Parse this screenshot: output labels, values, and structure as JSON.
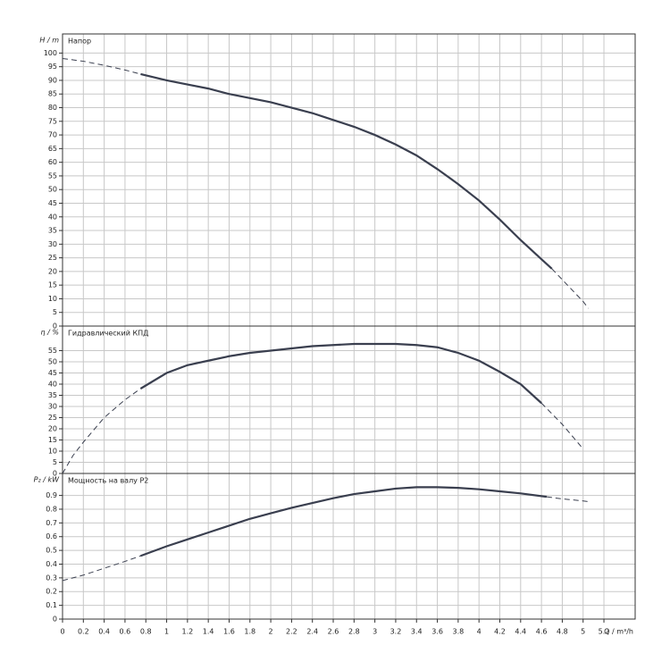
{
  "chart_data": [
    {
      "type": "line",
      "ylabel": "H / m",
      "title": "Напор",
      "xlim": [
        0,
        5.5
      ],
      "ylim": [
        0,
        107
      ],
      "yticks": [
        0,
        5,
        10,
        15,
        20,
        25,
        30,
        35,
        40,
        45,
        50,
        55,
        60,
        65,
        70,
        75,
        80,
        85,
        90,
        95,
        100
      ],
      "grid": true,
      "color": "#3a3f4f",
      "segments": [
        {
          "style": "dashed",
          "x": [
            0,
            0.2,
            0.4,
            0.6,
            0.75
          ],
          "values": [
            98,
            97,
            95.5,
            93.8,
            92.3
          ]
        },
        {
          "style": "solid",
          "x": [
            0.75,
            1.0,
            1.2,
            1.4,
            1.6,
            1.8,
            2.0,
            2.2,
            2.4,
            2.6,
            2.8,
            3.0,
            3.2,
            3.4,
            3.6,
            3.8,
            4.0,
            4.2,
            4.4,
            4.6,
            4.7
          ],
          "values": [
            92.3,
            90,
            88.5,
            87,
            85,
            83.5,
            82,
            80,
            78,
            75.5,
            73,
            70,
            66.5,
            62.5,
            57.5,
            52,
            46,
            39,
            31.5,
            24.5,
            21
          ]
        },
        {
          "style": "dashed",
          "x": [
            4.7,
            4.8,
            5.0,
            5.05
          ],
          "values": [
            21,
            17,
            9,
            6.5
          ]
        }
      ]
    },
    {
      "type": "line",
      "ylabel": "η / %",
      "title": "Гидравлический КПД",
      "xlim": [
        0,
        5.5
      ],
      "ylim": [
        0,
        66
      ],
      "yticks": [
        0,
        5,
        10,
        15,
        20,
        25,
        30,
        35,
        40,
        45,
        50,
        55
      ],
      "grid": true,
      "color": "#3a3f4f",
      "segments": [
        {
          "style": "dashed",
          "x": [
            0,
            0.1,
            0.2,
            0.4,
            0.6,
            0.75
          ],
          "values": [
            0,
            8,
            14,
            25,
            33,
            38
          ]
        },
        {
          "style": "solid",
          "x": [
            0.75,
            1.0,
            1.2,
            1.4,
            1.6,
            1.8,
            2.0,
            2.2,
            2.4,
            2.6,
            2.8,
            3.0,
            3.2,
            3.4,
            3.6,
            3.8,
            4.0,
            4.2,
            4.4,
            4.6
          ],
          "values": [
            38,
            45,
            48.5,
            50.5,
            52.5,
            54,
            55,
            56,
            57,
            57.5,
            58,
            58,
            58,
            57.5,
            56.5,
            54,
            50.5,
            45.5,
            40,
            31.5
          ]
        },
        {
          "style": "dashed",
          "x": [
            4.6,
            4.8,
            5.0
          ],
          "values": [
            31.5,
            22,
            11
          ]
        }
      ]
    },
    {
      "type": "line",
      "ylabel": "P₂ / kW",
      "title": "Мощность на валу P2",
      "xlabel": "Q / m³/h",
      "xlim": [
        0,
        5.5
      ],
      "ylim": [
        0,
        1.06
      ],
      "yticks": [
        0,
        0.1,
        0.2,
        0.3,
        0.4,
        0.5,
        0.6,
        0.7,
        0.8,
        0.9
      ],
      "grid": true,
      "color": "#3a3f4f",
      "xticks": [
        0,
        0.2,
        0.4,
        0.6,
        0.8,
        1,
        1.2,
        1.4,
        1.6,
        1.8,
        2,
        2.2,
        2.4,
        2.6,
        2.8,
        3,
        3.2,
        3.4,
        3.6,
        3.8,
        4,
        4.2,
        4.4,
        4.6,
        4.8,
        5,
        5.2
      ],
      "segments": [
        {
          "style": "dashed",
          "x": [
            0,
            0.2,
            0.4,
            0.6,
            0.75
          ],
          "values": [
            0.28,
            0.32,
            0.37,
            0.42,
            0.46
          ]
        },
        {
          "style": "solid",
          "x": [
            0.75,
            1.0,
            1.2,
            1.4,
            1.6,
            1.8,
            2.0,
            2.2,
            2.4,
            2.6,
            2.8,
            3.0,
            3.2,
            3.4,
            3.6,
            3.8,
            4.0,
            4.2,
            4.4,
            4.65
          ],
          "values": [
            0.46,
            0.53,
            0.58,
            0.63,
            0.68,
            0.73,
            0.77,
            0.81,
            0.845,
            0.88,
            0.91,
            0.93,
            0.95,
            0.96,
            0.96,
            0.955,
            0.945,
            0.93,
            0.915,
            0.89
          ]
        },
        {
          "style": "dashed",
          "x": [
            4.65,
            4.8,
            5.0,
            5.05
          ],
          "values": [
            0.89,
            0.875,
            0.86,
            0.855
          ]
        }
      ]
    }
  ]
}
